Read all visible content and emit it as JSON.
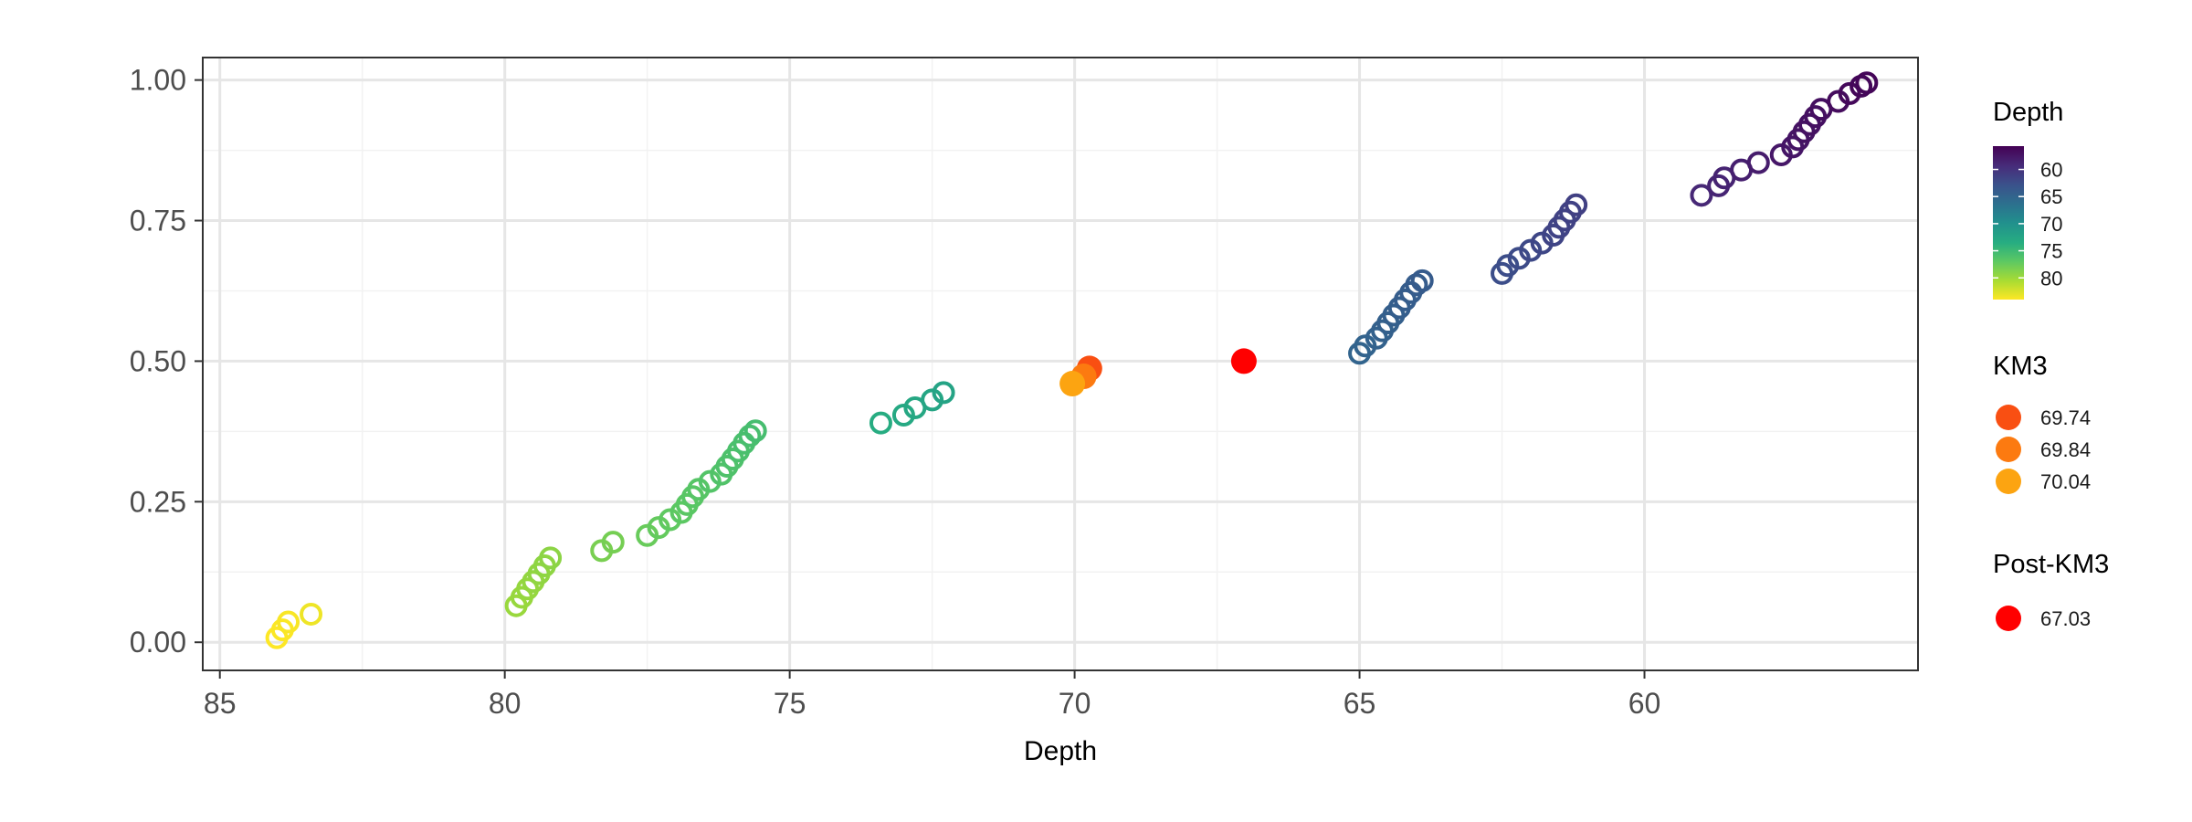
{
  "chart_data": {
    "type": "scatter",
    "xlabel": "Depth",
    "ylabel": "",
    "x_reversed": true,
    "xlim": [
      85.3,
      55.2
    ],
    "ylim": [
      -0.05,
      1.04
    ],
    "xticks": [
      85,
      80,
      75,
      70,
      65,
      60
    ],
    "xtick_labels": [
      "85",
      "80",
      "75",
      "70",
      "65",
      "60"
    ],
    "yticks": [
      0,
      0.25,
      0.5,
      0.75,
      1.0
    ],
    "ytick_labels": [
      "0.00",
      "0.25",
      "0.50",
      "0.75",
      "1.00"
    ],
    "grid": true,
    "legend_position": "right",
    "series": [
      {
        "name": "Depth",
        "style": "open-circle",
        "color_by": "x",
        "points": [
          [
            84.0,
            0.008
          ],
          [
            83.9,
            0.022
          ],
          [
            83.8,
            0.036
          ],
          [
            83.4,
            0.05
          ],
          [
            79.8,
            0.065
          ],
          [
            79.7,
            0.08
          ],
          [
            79.6,
            0.095
          ],
          [
            79.5,
            0.108
          ],
          [
            79.4,
            0.122
          ],
          [
            79.3,
            0.136
          ],
          [
            79.2,
            0.15
          ],
          [
            78.3,
            0.163
          ],
          [
            78.1,
            0.178
          ],
          [
            77.5,
            0.19
          ],
          [
            77.3,
            0.204
          ],
          [
            77.1,
            0.218
          ],
          [
            76.9,
            0.231
          ],
          [
            76.8,
            0.245
          ],
          [
            76.7,
            0.259
          ],
          [
            76.6,
            0.272
          ],
          [
            76.4,
            0.286
          ],
          [
            76.2,
            0.299
          ],
          [
            76.1,
            0.313
          ],
          [
            76.0,
            0.326
          ],
          [
            75.9,
            0.34
          ],
          [
            75.8,
            0.354
          ],
          [
            75.7,
            0.367
          ],
          [
            75.6,
            0.376
          ],
          [
            73.4,
            0.39
          ],
          [
            73.0,
            0.404
          ],
          [
            72.8,
            0.417
          ],
          [
            72.5,
            0.431
          ],
          [
            72.3,
            0.444
          ],
          [
            65.0,
            0.514
          ],
          [
            64.9,
            0.527
          ],
          [
            64.7,
            0.541
          ],
          [
            64.6,
            0.554
          ],
          [
            64.5,
            0.568
          ],
          [
            64.4,
            0.582
          ],
          [
            64.3,
            0.595
          ],
          [
            64.2,
            0.609
          ],
          [
            64.1,
            0.622
          ],
          [
            64.0,
            0.636
          ],
          [
            63.9,
            0.643
          ],
          [
            62.5,
            0.656
          ],
          [
            62.4,
            0.67
          ],
          [
            62.2,
            0.683
          ],
          [
            62.0,
            0.697
          ],
          [
            61.8,
            0.71
          ],
          [
            61.6,
            0.724
          ],
          [
            61.5,
            0.738
          ],
          [
            61.4,
            0.751
          ],
          [
            61.3,
            0.765
          ],
          [
            61.2,
            0.778
          ],
          [
            59.0,
            0.795
          ],
          [
            58.7,
            0.812
          ],
          [
            58.6,
            0.826
          ],
          [
            58.3,
            0.84
          ],
          [
            58.0,
            0.853
          ],
          [
            57.6,
            0.867
          ],
          [
            57.4,
            0.881
          ],
          [
            57.3,
            0.894
          ],
          [
            57.2,
            0.908
          ],
          [
            57.1,
            0.921
          ],
          [
            57.0,
            0.935
          ],
          [
            56.9,
            0.948
          ],
          [
            56.6,
            0.962
          ],
          [
            56.4,
            0.976
          ],
          [
            56.2,
            0.989
          ],
          [
            56.1,
            0.995
          ]
        ]
      },
      {
        "name": "KM3",
        "style": "filled-circle",
        "points": [
          {
            "x": 69.74,
            "y": 0.487,
            "label": "69.74",
            "color": "#f94f12"
          },
          {
            "x": 69.84,
            "y": 0.473,
            "label": "69.84",
            "color": "#fc7a10"
          },
          {
            "x": 70.04,
            "y": 0.46,
            "label": "70.04",
            "color": "#fca411"
          }
        ]
      },
      {
        "name": "Post-KM3",
        "style": "filled-circle",
        "points": [
          {
            "x": 67.03,
            "y": 0.5,
            "label": "67.03",
            "color": "#ff0000"
          }
        ]
      }
    ],
    "legend": {
      "depth": {
        "title": "Depth",
        "labels": [
          "60",
          "65",
          "70",
          "75",
          "80"
        ],
        "values": [
          60,
          65,
          70,
          75,
          80
        ],
        "range": [
          55.7,
          84.0
        ],
        "colormap": "viridis"
      },
      "km3": {
        "title": "KM3",
        "labels": [
          "69.74",
          "69.84",
          "70.04"
        ],
        "colors": [
          "#f94f12",
          "#fc7a10",
          "#fca411"
        ]
      },
      "post_km3": {
        "title": "Post-KM3",
        "labels": [
          "67.03"
        ],
        "colors": [
          "#ff0000"
        ]
      }
    }
  }
}
